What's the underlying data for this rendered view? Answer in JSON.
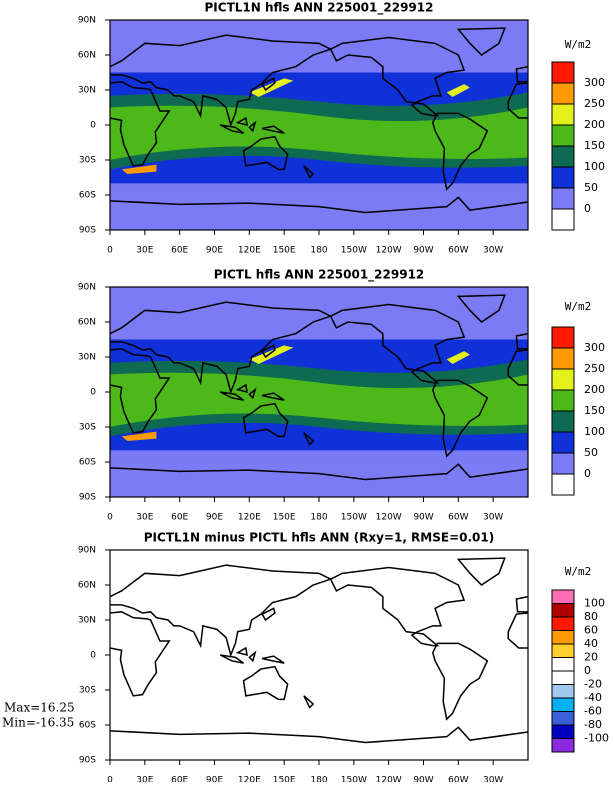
{
  "panels": [
    {
      "title": "PICTL1N hfls ANN 225001_229912",
      "units": "W/m2",
      "lat_labels": [
        "90N",
        "60N",
        "30N",
        "0",
        "30S",
        "60S",
        "90S"
      ],
      "lon_labels": [
        "0",
        "30E",
        "60E",
        "90E",
        "120E",
        "150E",
        "180",
        "150W",
        "120W",
        "90W",
        "60W",
        "30W"
      ],
      "colorbar_labels": [
        0,
        50,
        100,
        150,
        200,
        250,
        300
      ],
      "colorbar_colors": [
        "#ffffff",
        "#7b7bf5",
        "#1030d8",
        "#0f6a52",
        "#4cb81a",
        "#e3f01a",
        "#ff9a00",
        "#ff1a00"
      ]
    },
    {
      "title": "PICTL hfls ANN 225001_229912",
      "units": "W/m2",
      "lat_labels": [
        "90N",
        "60N",
        "30N",
        "0",
        "30S",
        "60S",
        "90S"
      ],
      "lon_labels": [
        "0",
        "30E",
        "60E",
        "90E",
        "120E",
        "150E",
        "180",
        "150W",
        "120W",
        "90W",
        "60W",
        "30W"
      ],
      "colorbar_labels": [
        0,
        50,
        100,
        150,
        200,
        250,
        300
      ],
      "colorbar_colors": [
        "#ffffff",
        "#7b7bf5",
        "#1030d8",
        "#0f6a52",
        "#4cb81a",
        "#e3f01a",
        "#ff9a00",
        "#ff1a00"
      ]
    },
    {
      "title": "PICTL1N minus PICTL hfls ANN (Rxy=1, RMSE=0.01)",
      "units": "W/m2",
      "lat_labels": [
        "90N",
        "60N",
        "30N",
        "0",
        "30S",
        "60S",
        "90S"
      ],
      "lon_labels": [
        "0",
        "30E",
        "60E",
        "90E",
        "120E",
        "150E",
        "180",
        "150W",
        "120W",
        "90W",
        "60W",
        "30W"
      ],
      "colorbar_labels": [
        -100,
        -80,
        -60,
        -40,
        -20,
        0,
        20,
        40,
        60,
        80,
        100
      ],
      "colorbar_colors": [
        "#8a2be2",
        "#0000c0",
        "#3a5fd8",
        "#00b0f0",
        "#a0c8f0",
        "#ffffff",
        "#ffffff",
        "#ffd030",
        "#ff9a00",
        "#ff1a00",
        "#b00000",
        "#ff6eb4"
      ],
      "max_text": "Max=16.25",
      "min_text": "Min=-16.35"
    }
  ]
}
